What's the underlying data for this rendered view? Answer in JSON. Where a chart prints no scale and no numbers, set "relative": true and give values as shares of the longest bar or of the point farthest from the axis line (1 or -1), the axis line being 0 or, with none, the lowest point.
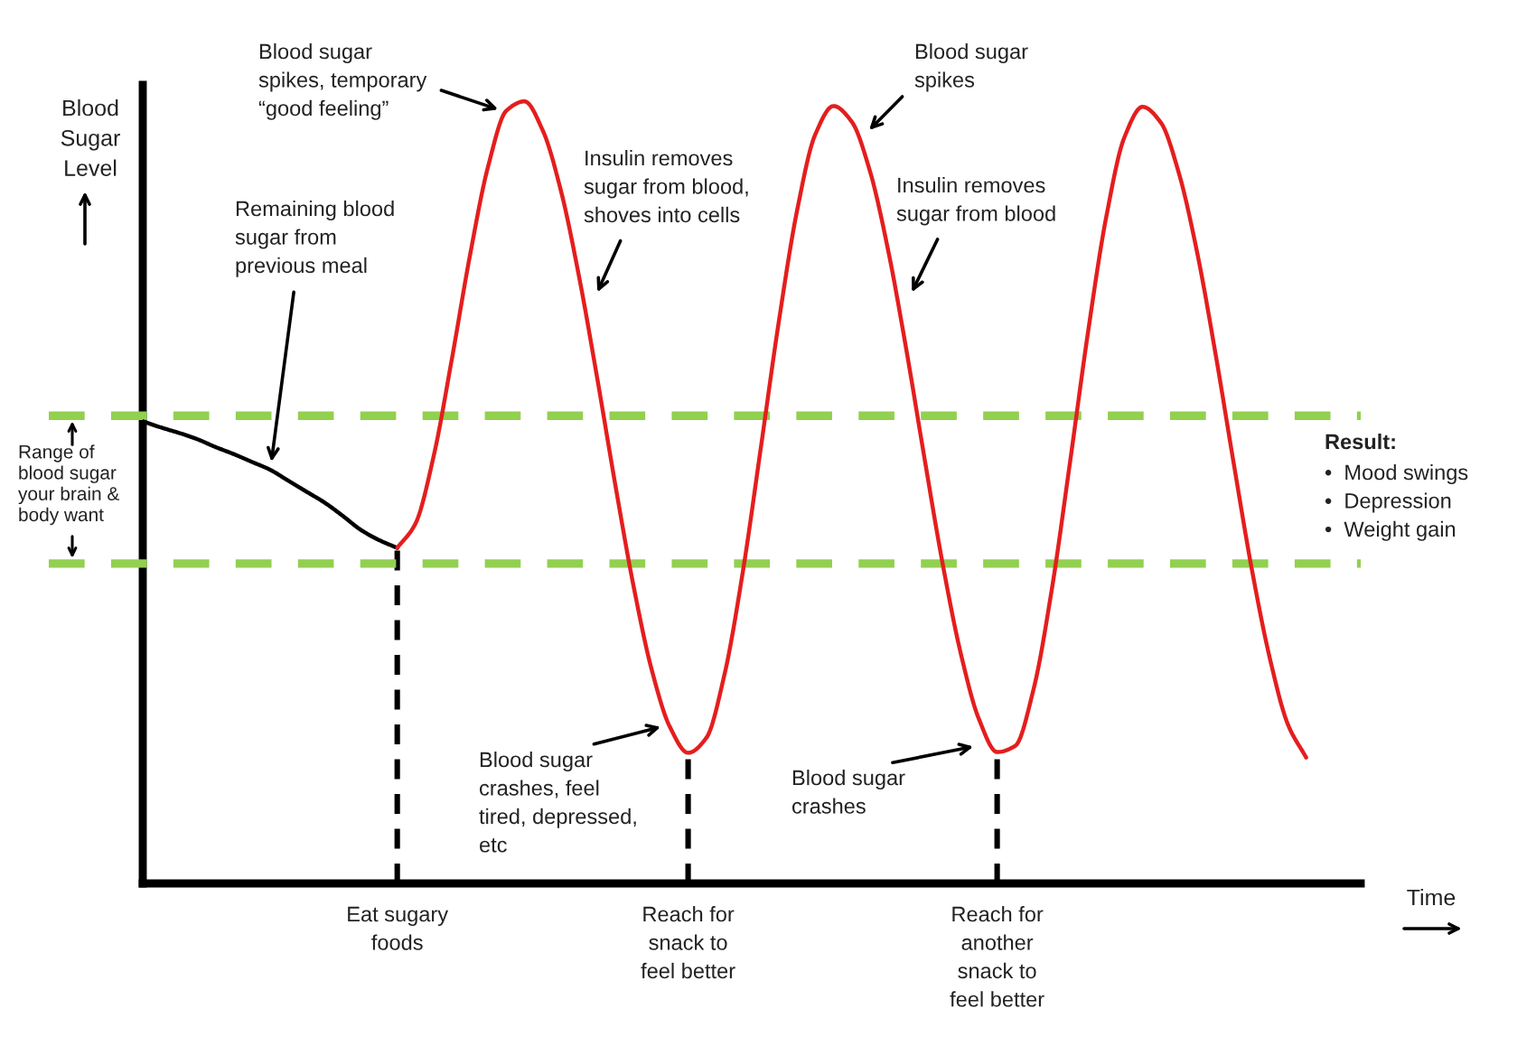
{
  "chart_data": {
    "type": "line",
    "relative": true,
    "tick_labels": "x",
    "xlabel": "Time",
    "ylabel": "Blood\nSugar\nLevel",
    "categories": [
      null,
      null,
      null,
      null,
      null,
      null,
      null,
      null,
      null,
      null,
      null,
      null,
      null,
      null,
      "Eat sugary\nfoods",
      null,
      null,
      null,
      null,
      null,
      null,
      null,
      null,
      null,
      null,
      null,
      null,
      null,
      null,
      null,
      "Reach for\nsnack to\nfeel better",
      null,
      null,
      null,
      null,
      null,
      null,
      null,
      null,
      null,
      null,
      null,
      null,
      null,
      null,
      null,
      null,
      "Reach for\nanother\nsnack to\nfeel better",
      null,
      null,
      null,
      null,
      null,
      null,
      null,
      null,
      null,
      null,
      null,
      null,
      null,
      null,
      null,
      null,
      null,
      null,
      null,
      null
    ],
    "series": [
      {
        "color": "#000000",
        "values": [
          0.591,
          0.583,
          0.576,
          0.568,
          0.558,
          0.549,
          0.539,
          0.529,
          0.515,
          0.501,
          0.487,
          0.47,
          0.452,
          0.439,
          0.429,
          null,
          null,
          null,
          null,
          null,
          null,
          null,
          null,
          null,
          null,
          null,
          null,
          null,
          null,
          null,
          null,
          null,
          null,
          null,
          null,
          null,
          null,
          null,
          null,
          null,
          null,
          null,
          null,
          null,
          null,
          null,
          null,
          null,
          null,
          null,
          null,
          null,
          null,
          null,
          null,
          null,
          null,
          null,
          null,
          null,
          null,
          null,
          null,
          null,
          null,
          null,
          null,
          null
        ]
      },
      {
        "color": "#e41e1e",
        "values": [
          null,
          null,
          null,
          null,
          null,
          null,
          null,
          null,
          null,
          null,
          null,
          null,
          null,
          null,
          0.429,
          0.46,
          0.546,
          0.67,
          0.803,
          0.917,
          0.988,
          1.0,
          0.963,
          0.886,
          0.776,
          0.646,
          0.509,
          0.38,
          0.273,
          0.2,
          0.167,
          0.186,
          0.267,
          0.397,
          0.557,
          0.72,
          0.861,
          0.958,
          0.994,
          0.974,
          0.911,
          0.81,
          0.683,
          0.544,
          0.409,
          0.294,
          0.21,
          0.168,
          0.176,
          0.248,
          0.375,
          0.537,
          0.705,
          0.852,
          0.954,
          0.993,
          0.973,
          0.908,
          0.807,
          0.679,
          0.539,
          0.403,
          0.288,
          0.203,
          0.161,
          null,
          null,
          null
        ]
      }
    ],
    "ref_lines": [
      {
        "axis": "x",
        "value": "Eat sugary\nfoods",
        "color": "#000000",
        "line_style": "dashed"
      },
      {
        "axis": "x",
        "value": "Reach for\nsnack to\nfeel better",
        "color": "#000000",
        "line_style": "dashed"
      },
      {
        "axis": "x",
        "value": "Reach for\nanother\nsnack to\nfeel better",
        "color": "#000000",
        "line_style": "dashed"
      },
      {
        "axis": "y",
        "value": 0.598,
        "label": "Range of\nblood sugar\nyour brain &\nbody want",
        "color": "#92d050",
        "line_style": "dashed"
      },
      {
        "axis": "y",
        "value": 0.409,
        "color": "#92d050",
        "line_style": "dashed"
      }
    ],
    "annotations": [
      "Blood sugar\nspikes, temporary\n“good feeling”",
      "Remaining blood\nsugar from\nprevious meal",
      "Insulin removes\nsugar from blood,\nshoves into cells",
      "Blood sugar\nspikes",
      "Insulin removes\nsugar from blood",
      "Blood sugar\ncrashes, feel\ntired, depressed,\netc",
      "Blood sugar\ncrashes",
      "Result:",
      "•  Mood swings\n•  Depression\n•  Weight gain"
    ]
  }
}
